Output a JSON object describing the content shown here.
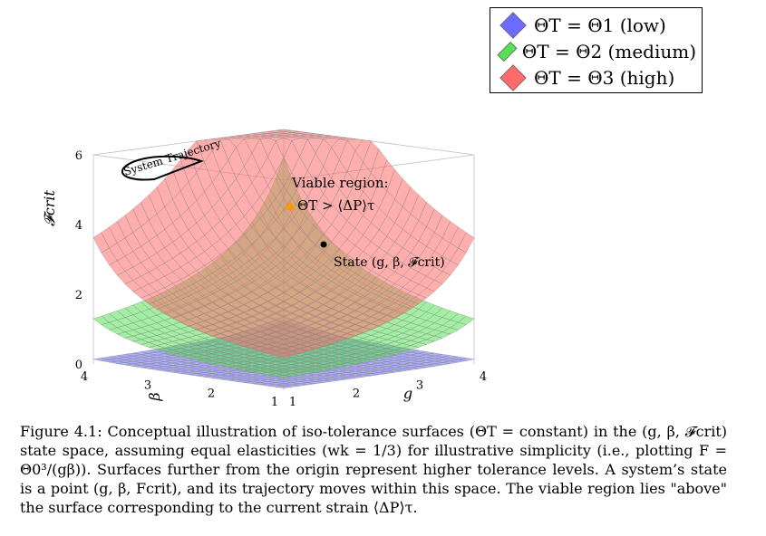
{
  "legend": {
    "items": [
      {
        "label": "ΘT = Θ1 (low)",
        "color": "#6b6bff"
      },
      {
        "label": "ΘT = Θ2 (medium)",
        "color": "#55e055"
      },
      {
        "label": "ΘT = Θ3 (high)",
        "color": "#ff6b6b"
      }
    ]
  },
  "chart_data": {
    "type": "surface3d",
    "zlabel": "𝓕crit",
    "ylabel_beta": "β",
    "xlabel_g": "g",
    "z_ticks": [
      "0",
      "2",
      "4",
      "6"
    ],
    "beta_ticks": [
      "1",
      "2",
      "3",
      "4"
    ],
    "g_ticks": [
      "1",
      "2",
      "3",
      "4"
    ],
    "zlim": [
      0,
      6
    ],
    "surfaces": [
      {
        "name": "ΘT = Θ1 (low)",
        "level": 1,
        "color": "#6b6bff"
      },
      {
        "name": "ΘT = Θ2 (medium)",
        "level": 2,
        "color": "#55e055"
      },
      {
        "name": "ΘT = Θ3 (high)",
        "level": 3,
        "color": "#ff6b6b"
      }
    ],
    "annotations": {
      "trajectory": "System Trajectory",
      "viable_line1": "Viable region:",
      "viable_line2": "ΘT > ⟨ΔP⟩τ",
      "state": "State (g, β, 𝓕crit)"
    }
  },
  "caption": {
    "label": "Figure 4.1:",
    "text": "Conceptual illustration of iso-tolerance surfaces (ΘT = constant) in the (g, β, 𝓕crit) state space, assuming equal elasticities (wk = 1/3) for illustrative simplicity (i.e., plotting F = Θ0³/(gβ)). Surfaces further from the origin represent higher tolerance levels. A system’s state is a point (g, β, Fcrit), and its trajectory moves within this space. The viable region lies \"above\" the surface corresponding to the current strain ⟨ΔP⟩τ."
  }
}
